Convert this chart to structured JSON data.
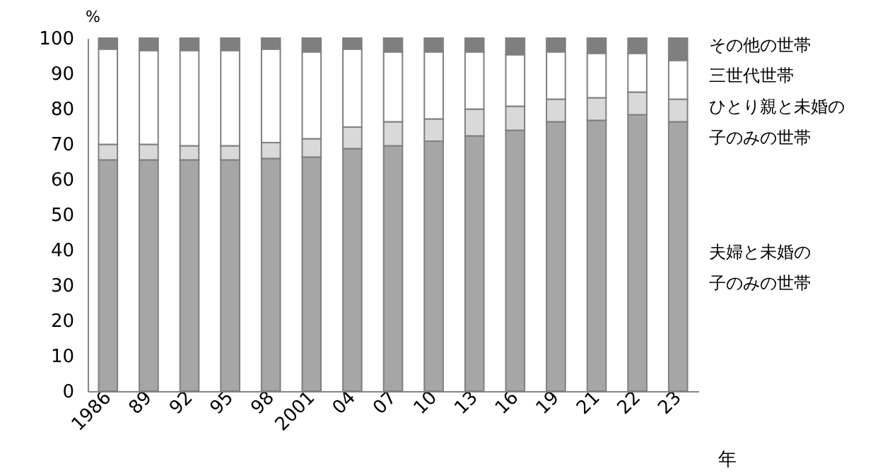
{
  "chart_data": {
    "type": "bar",
    "stacked": true,
    "xlabel": "年",
    "ylabel": "%",
    "categories": [
      "1986",
      "89",
      "92",
      "95",
      "98",
      "2001",
      "04",
      "07",
      "10",
      "13",
      "16",
      "19",
      "21",
      "22",
      "23"
    ],
    "ylim": [
      0,
      100
    ],
    "yticks": [
      0,
      10,
      20,
      30,
      40,
      50,
      60,
      70,
      80,
      90,
      100
    ],
    "grid": false,
    "legend": "right",
    "series": [
      {
        "name": "夫婦と未婚の子のみの世帯",
        "color": "#a6a6a6",
        "values": [
          65.5,
          65.5,
          65.5,
          65.5,
          65.9,
          66.3,
          68.7,
          69.5,
          70.8,
          72.3,
          73.9,
          76.3,
          76.7,
          78.3,
          76.3
        ]
      },
      {
        "name": "ひとり親と未婚の子のみの世帯",
        "color": "#d9d9d9",
        "values": [
          4.4,
          4.4,
          4.0,
          4.0,
          4.5,
          5.2,
          6.1,
          6.8,
          6.3,
          7.6,
          6.8,
          6.4,
          6.4,
          6.4,
          6.4
        ]
      },
      {
        "name": "三世代世帯",
        "color": "#ffffff",
        "values": [
          27.0,
          26.6,
          27.0,
          27.0,
          26.5,
          24.6,
          22.1,
          19.8,
          19.0,
          16.2,
          14.6,
          13.4,
          12.6,
          11.0,
          11.0
        ]
      },
      {
        "name": "その他の世帯",
        "color": "#7f7f7f",
        "values": [
          3.1,
          3.5,
          3.5,
          3.5,
          3.1,
          3.9,
          3.1,
          3.9,
          3.9,
          3.9,
          4.7,
          3.9,
          4.3,
          4.3,
          6.3
        ]
      }
    ]
  }
}
